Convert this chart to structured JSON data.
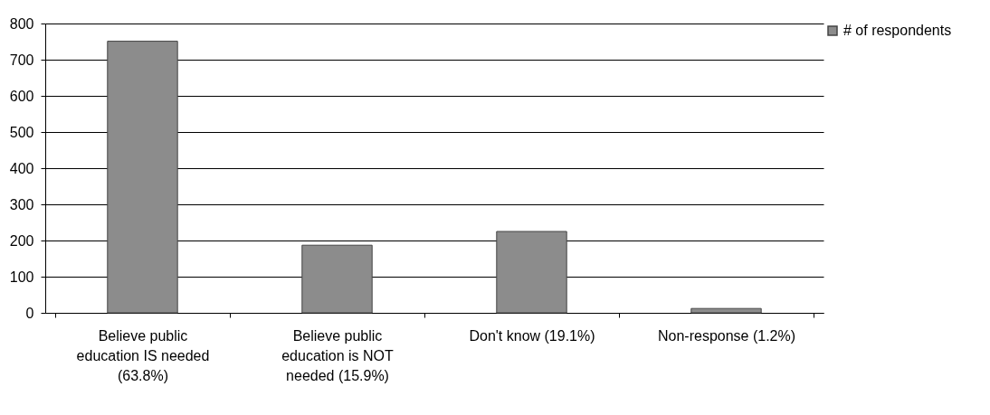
{
  "chart_data": {
    "type": "bar",
    "categories": [
      "Believe public education IS needed (63.8%)",
      "Believe public education is NOT needed (15.9%)",
      "Don't know (19.1%)",
      "Non-response (1.2%)"
    ],
    "series": [
      {
        "name": "# of respondents",
        "color": "#8c8c8c",
        "values": [
          751,
          187,
          225,
          12
        ]
      }
    ],
    "ylim": [
      0,
      800
    ],
    "yticks": [
      0,
      100,
      200,
      300,
      400,
      500,
      600,
      700,
      800
    ],
    "grid": "y",
    "legend": "top right"
  }
}
